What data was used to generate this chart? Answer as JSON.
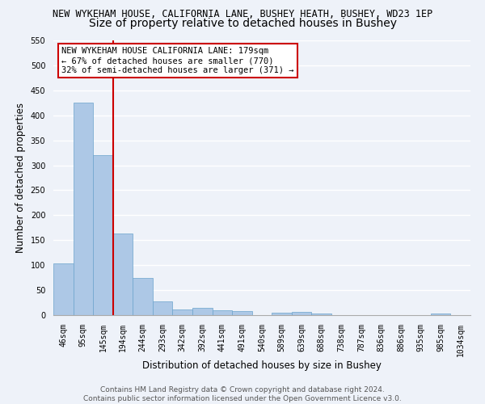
{
  "title1": "NEW WYKEHAM HOUSE, CALIFORNIA LANE, BUSHEY HEATH, BUSHEY, WD23 1EP",
  "title2": "Size of property relative to detached houses in Bushey",
  "xlabel": "Distribution of detached houses by size in Bushey",
  "ylabel": "Number of detached properties",
  "bar_values": [
    103,
    425,
    320,
    163,
    75,
    27,
    12,
    14,
    10,
    8,
    0,
    5,
    6,
    4,
    0,
    0,
    0,
    0,
    0,
    4,
    0
  ],
  "bar_labels": [
    "46sqm",
    "95sqm",
    "145sqm",
    "194sqm",
    "244sqm",
    "293sqm",
    "342sqm",
    "392sqm",
    "441sqm",
    "491sqm",
    "540sqm",
    "589sqm",
    "639sqm",
    "688sqm",
    "738sqm",
    "787sqm",
    "836sqm",
    "886sqm",
    "935sqm",
    "985sqm",
    "1034sqm"
  ],
  "bar_color": "#adc8e6",
  "bar_edge_color": "#6ba3cc",
  "bar_edge_width": 0.5,
  "red_line_x": 2.5,
  "red_line_color": "#cc0000",
  "annotation_text": "NEW WYKEHAM HOUSE CALIFORNIA LANE: 179sqm\n← 67% of detached houses are smaller (770)\n32% of semi-detached houses are larger (371) →",
  "annotation_box_color": "#ffffff",
  "annotation_box_edge": "#cc0000",
  "ylim": [
    0,
    550
  ],
  "yticks": [
    0,
    50,
    100,
    150,
    200,
    250,
    300,
    350,
    400,
    450,
    500,
    550
  ],
  "footer1": "Contains HM Land Registry data © Crown copyright and database right 2024.",
  "footer2": "Contains public sector information licensed under the Open Government Licence v3.0.",
  "background_color": "#eef2f9",
  "grid_color": "#ffffff",
  "title1_fontsize": 8.5,
  "title2_fontsize": 10,
  "tick_fontsize": 7,
  "label_fontsize": 8.5,
  "footer_fontsize": 6.5,
  "annotation_fontsize": 7.5
}
